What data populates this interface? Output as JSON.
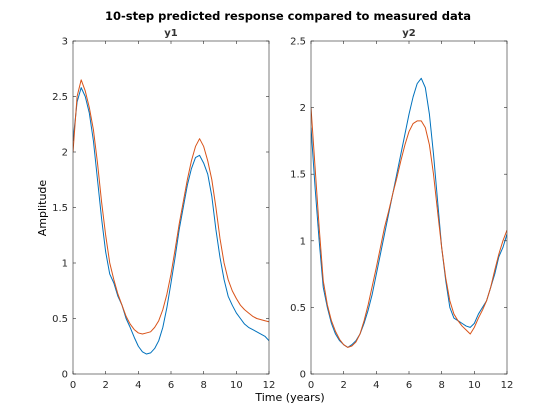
{
  "figure": {
    "title": "10-step predicted response compared to measured data",
    "xlabel": "Time (years)",
    "ylabel": "Amplitude"
  },
  "colors": {
    "measured": "#0072BD",
    "predicted": "#D95319",
    "axis": "#262626",
    "background": "#ffffff"
  },
  "chart_data": [
    {
      "type": "line",
      "title": "y1",
      "xlabel": "Time (years)",
      "ylabel": "Amplitude",
      "xlim": [
        0,
        12
      ],
      "ylim": [
        0,
        3
      ],
      "xticks": [
        0,
        2,
        4,
        6,
        8,
        10,
        12
      ],
      "yticks": [
        0,
        0.5,
        1,
        1.5,
        2,
        2.5,
        3
      ],
      "yticklabels": [
        "0",
        "0.5",
        "1",
        "1.5",
        "2",
        "2.5",
        "3"
      ],
      "grid": false,
      "series": [
        {
          "role": "measured",
          "color": "#0072BD",
          "x": [
            0,
            0.25,
            0.5,
            0.75,
            1,
            1.25,
            1.5,
            1.75,
            2,
            2.25,
            2.5,
            2.75,
            3,
            3.25,
            3.5,
            3.75,
            4,
            4.25,
            4.5,
            4.75,
            5,
            5.25,
            5.5,
            5.75,
            6,
            6.25,
            6.5,
            6.75,
            7,
            7.25,
            7.5,
            7.75,
            8,
            8.25,
            8.5,
            8.75,
            9,
            9.25,
            9.5,
            9.75,
            10,
            10.25,
            10.5,
            10.75,
            11,
            11.25,
            11.5,
            11.75,
            12
          ],
          "y": [
            2.1,
            2.45,
            2.58,
            2.5,
            2.35,
            2.1,
            1.75,
            1.4,
            1.1,
            0.9,
            0.82,
            0.7,
            0.62,
            0.5,
            0.42,
            0.33,
            0.25,
            0.2,
            0.18,
            0.19,
            0.23,
            0.3,
            0.42,
            0.6,
            0.82,
            1.05,
            1.3,
            1.5,
            1.7,
            1.85,
            1.95,
            1.97,
            1.9,
            1.8,
            1.6,
            1.3,
            1.05,
            0.85,
            0.7,
            0.62,
            0.55,
            0.5,
            0.45,
            0.42,
            0.4,
            0.38,
            0.36,
            0.34,
            0.3
          ]
        },
        {
          "role": "predicted",
          "color": "#D95319",
          "x": [
            0,
            0.25,
            0.5,
            0.75,
            1,
            1.25,
            1.5,
            1.75,
            2,
            2.25,
            2.5,
            2.75,
            3,
            3.25,
            3.5,
            3.75,
            4,
            4.25,
            4.5,
            4.75,
            5,
            5.25,
            5.5,
            5.75,
            6,
            6.25,
            6.5,
            6.75,
            7,
            7.25,
            7.5,
            7.75,
            8,
            8.25,
            8.5,
            8.75,
            9,
            9.25,
            9.5,
            9.75,
            10,
            10.25,
            10.5,
            10.75,
            11,
            11.25,
            11.5,
            11.75,
            12
          ],
          "y": [
            2.0,
            2.5,
            2.65,
            2.55,
            2.4,
            2.2,
            1.9,
            1.55,
            1.25,
            1.0,
            0.85,
            0.72,
            0.62,
            0.52,
            0.45,
            0.4,
            0.37,
            0.36,
            0.37,
            0.38,
            0.42,
            0.48,
            0.58,
            0.72,
            0.9,
            1.12,
            1.35,
            1.55,
            1.75,
            1.92,
            2.05,
            2.12,
            2.05,
            1.92,
            1.75,
            1.5,
            1.22,
            1.0,
            0.85,
            0.75,
            0.68,
            0.62,
            0.58,
            0.55,
            0.52,
            0.5,
            0.49,
            0.48,
            0.47
          ]
        }
      ]
    },
    {
      "type": "line",
      "title": "y2",
      "xlim": [
        0,
        12
      ],
      "ylim": [
        0,
        2.5
      ],
      "xticks": [
        0,
        2,
        4,
        6,
        8,
        10,
        12
      ],
      "yticks": [
        0,
        0.5,
        1,
        1.5,
        2,
        2.5
      ],
      "yticklabels": [
        "0",
        "0.5",
        "1",
        "1.5",
        "2",
        "2.5"
      ],
      "grid": false,
      "series": [
        {
          "role": "measured",
          "color": "#0072BD",
          "x": [
            0,
            0.25,
            0.5,
            0.75,
            1,
            1.25,
            1.5,
            1.75,
            2,
            2.25,
            2.5,
            2.75,
            3,
            3.25,
            3.5,
            3.75,
            4,
            4.25,
            4.5,
            4.75,
            5,
            5.25,
            5.5,
            5.75,
            6,
            6.25,
            6.5,
            6.75,
            7,
            7.25,
            7.5,
            7.75,
            8,
            8.25,
            8.5,
            8.75,
            9,
            9.25,
            9.5,
            9.75,
            10,
            10.25,
            10.5,
            10.75,
            11,
            11.25,
            11.5,
            11.75,
            12
          ],
          "y": [
            1.85,
            1.4,
            1.0,
            0.65,
            0.5,
            0.38,
            0.3,
            0.25,
            0.22,
            0.2,
            0.22,
            0.25,
            0.3,
            0.38,
            0.48,
            0.6,
            0.75,
            0.9,
            1.05,
            1.2,
            1.35,
            1.5,
            1.65,
            1.8,
            1.95,
            2.08,
            2.18,
            2.22,
            2.15,
            1.95,
            1.65,
            1.3,
            0.95,
            0.7,
            0.5,
            0.42,
            0.4,
            0.38,
            0.36,
            0.35,
            0.38,
            0.45,
            0.5,
            0.55,
            0.65,
            0.75,
            0.88,
            0.95,
            1.05
          ]
        },
        {
          "role": "predicted",
          "color": "#D95319",
          "x": [
            0,
            0.25,
            0.5,
            0.75,
            1,
            1.25,
            1.5,
            1.75,
            2,
            2.25,
            2.5,
            2.75,
            3,
            3.25,
            3.5,
            3.75,
            4,
            4.25,
            4.5,
            4.75,
            5,
            5.25,
            5.5,
            5.75,
            6,
            6.25,
            6.5,
            6.75,
            7,
            7.25,
            7.5,
            7.75,
            8,
            8.25,
            8.5,
            8.75,
            9,
            9.25,
            9.5,
            9.75,
            10,
            10.25,
            10.5,
            10.75,
            11,
            11.25,
            11.5,
            11.75,
            12
          ],
          "y": [
            2.0,
            1.55,
            1.1,
            0.7,
            0.52,
            0.4,
            0.32,
            0.26,
            0.22,
            0.2,
            0.21,
            0.24,
            0.3,
            0.4,
            0.52,
            0.66,
            0.8,
            0.95,
            1.1,
            1.22,
            1.35,
            1.47,
            1.6,
            1.72,
            1.82,
            1.88,
            1.9,
            1.9,
            1.85,
            1.72,
            1.5,
            1.22,
            0.95,
            0.72,
            0.55,
            0.45,
            0.4,
            0.36,
            0.33,
            0.3,
            0.35,
            0.42,
            0.48,
            0.55,
            0.65,
            0.78,
            0.9,
            1.0,
            1.08
          ]
        }
      ]
    }
  ]
}
